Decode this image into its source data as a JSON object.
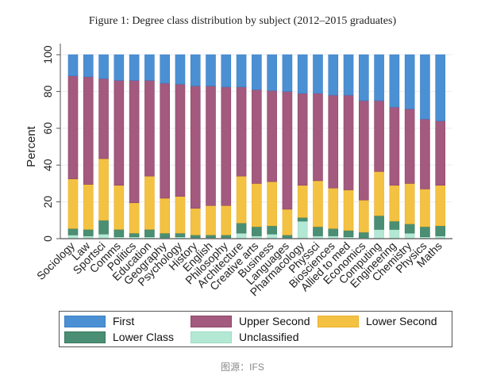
{
  "title": "Figure 1: Degree class distribution by subject (2012–2015 graduates)",
  "caption": "图源：IFS",
  "chart_data": {
    "type": "bar",
    "stacked": true,
    "title": "Figure 1: Degree class distribution by subject (2012–2015 graduates)",
    "xlabel": "",
    "ylabel": "Percent",
    "ylim": [
      0,
      100
    ],
    "yticks": [
      0,
      20,
      40,
      60,
      80,
      100
    ],
    "grid": true,
    "legend_position": "bottom",
    "categories": [
      "Sociology",
      "Law",
      "Sportsci",
      "Comms",
      "Politics",
      "Education",
      "Geography",
      "Psychology",
      "History",
      "English",
      "Philosophy",
      "Architecture",
      "Creative arts",
      "Business",
      "Languages",
      "Pharmacology",
      "Physsci",
      "Biosciences",
      "Allied to med",
      "Economics",
      "Computing",
      "Engineering",
      "Chemistry",
      "Physics",
      "Maths"
    ],
    "series": [
      {
        "name": "Unclassified",
        "color": "#b3e8d4",
        "values": [
          2,
          1.5,
          2.5,
          1,
          1,
          1,
          0.5,
          1,
          0.5,
          0.5,
          0.5,
          3,
          1.5,
          2.5,
          0.5,
          9.5,
          1.5,
          1.5,
          1,
          0.5,
          5,
          5,
          3,
          1,
          1.5
        ]
      },
      {
        "name": "Lower Class",
        "color": "#4a8f73",
        "values": [
          3.5,
          3.5,
          7.5,
          4,
          2,
          4,
          2.5,
          2,
          1.5,
          1.5,
          1.5,
          5.5,
          5,
          4.5,
          1.5,
          2,
          5,
          4,
          3.5,
          3,
          7.5,
          4.5,
          5,
          5.5,
          5.5
        ]
      },
      {
        "name": "Lower Second",
        "color": "#f4c242",
        "values": [
          27,
          24.5,
          33.5,
          24,
          16.5,
          29,
          19,
          20,
          14.5,
          16,
          16,
          25.5,
          23.5,
          24,
          14,
          17.5,
          25,
          22,
          22,
          17.5,
          24,
          19.5,
          22,
          20.5,
          22
        ]
      },
      {
        "name": "Upper Second",
        "color": "#a35a7e",
        "values": [
          56,
          58.5,
          43.5,
          57,
          66.5,
          52,
          62.5,
          61,
          66.5,
          65,
          64.5,
          48.5,
          51,
          49.5,
          64,
          50,
          47.5,
          50.5,
          51.5,
          54,
          38.5,
          42.5,
          40.5,
          38,
          35
        ]
      },
      {
        "name": "First",
        "color": "#4c90d4",
        "values": [
          11.5,
          12,
          13,
          14,
          14,
          14,
          15.5,
          16,
          17,
          17,
          17.5,
          17.5,
          19,
          19.5,
          20,
          21,
          21,
          22,
          22,
          25,
          25,
          28.5,
          29.5,
          35,
          36
        ]
      }
    ]
  },
  "legend": [
    {
      "label": "First",
      "color": "#4c90d4"
    },
    {
      "label": "Upper Second",
      "color": "#a35a7e"
    },
    {
      "label": "Lower Second",
      "color": "#f4c242"
    },
    {
      "label": "Lower Class",
      "color": "#4a8f73"
    },
    {
      "label": "Unclassified",
      "color": "#b3e8d4"
    }
  ]
}
